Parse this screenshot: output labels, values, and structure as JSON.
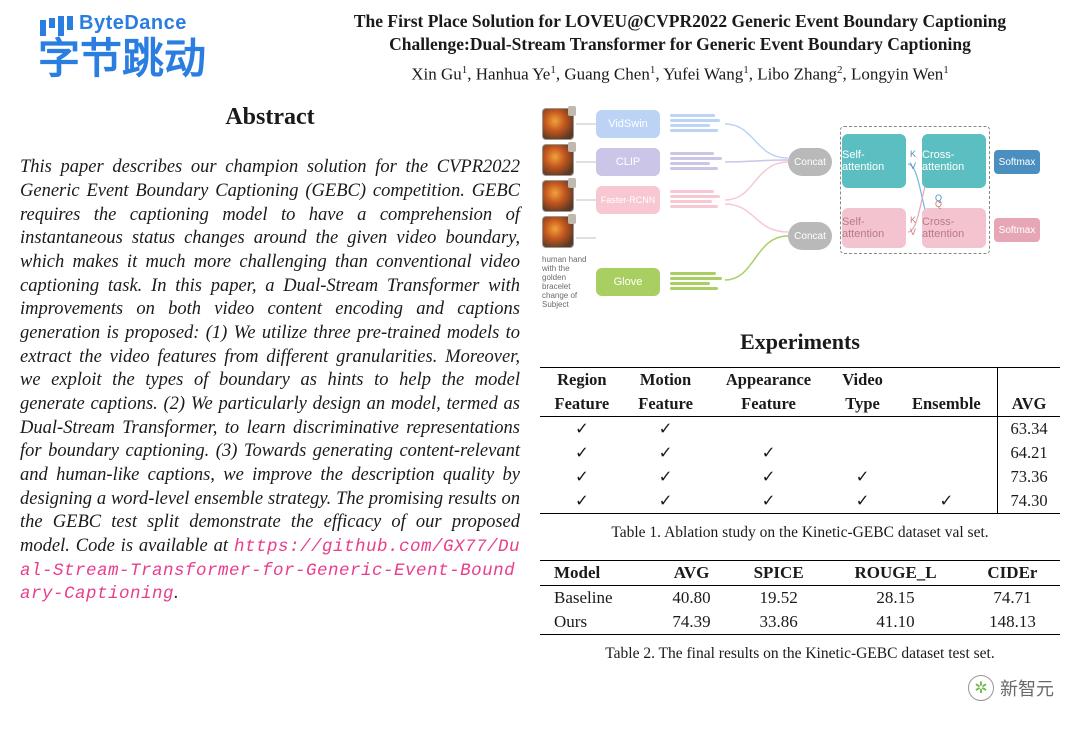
{
  "logo": {
    "en": "ByteDance",
    "cn": "字节跳动",
    "color": "#2a7de1"
  },
  "title_line1": "The First Place Solution for LOVEU@CVPR2022  Generic Event Boundary Captioning",
  "title_line2": "Challenge:Dual-Stream Transformer for Generic Event Boundary Captioning",
  "authors": [
    {
      "name": "Xin Gu",
      "aff": "1"
    },
    {
      "name": "Hanhua Ye",
      "aff": "1"
    },
    {
      "name": "Guang Chen",
      "aff": "1"
    },
    {
      "name": "Yufei Wang",
      "aff": "1"
    },
    {
      "name": "Libo Zhang",
      "aff": "2"
    },
    {
      "name": "Longyin Wen",
      "aff": "1"
    }
  ],
  "abstract_heading": "Abstract",
  "abstract_text": "This paper describes our champion solution for the CVPR2022 Generic Event Boundary Captioning (GEBC) competition. GEBC requires the captioning model to have a comprehension of instantaneous status changes around the given video boundary, which makes it much more challenging than conventional video captioning task. In this paper, a Dual-Stream Transformer with improvements on both video content encoding and captions generation is proposed: (1) We utilize three pre-trained models to extract the video features from different granularities. Moreover, we exploit the types of boundary as hints to help the model generate captions. (2) We particularly design an model, termed as Dual-Stream Transformer, to learn discriminative representations for boundary captioning. (3) Towards generating content-relevant and human-like captions, we improve the description quality by designing a word-level ensemble strategy. The promising results on the GEBC test split demonstrate the efficacy of our proposed model.  Code is available at ",
  "code_url": "https://github.com/GX77/Dual-Stream-Transformer-for-Generic-Event-Boundary-Captioning",
  "period": ".",
  "experiments_heading": "Experiments",
  "diagram": {
    "blocks": {
      "vidswin": {
        "label": "VidSwin",
        "color": "#bcd3f5"
      },
      "clip": {
        "label": "CLIP",
        "color": "#cbc5e8"
      },
      "rcnn": {
        "label": "Faster-RCNN",
        "color": "#f7c8d2"
      },
      "glove": {
        "label": "Glove",
        "color": "#a9cf63"
      },
      "concat": {
        "label": "Concat",
        "color": "#b9b9b9"
      },
      "self1": {
        "label": "Self-attention",
        "color": "#5bbfc1"
      },
      "cross1": {
        "label": "Cross-attention",
        "color": "#5bbfc1"
      },
      "self2": {
        "label": "Self-attention",
        "color": "#f3c4cf"
      },
      "cross2": {
        "label": "Cross-attention",
        "color": "#f3c4cf"
      },
      "soft1": {
        "label": "Softmax",
        "color": "#4a8fbf"
      },
      "soft2": {
        "label": "Softmax",
        "color": "#e7a6b4"
      }
    },
    "line_colors": {
      "vidswin": "#bcd3f5",
      "clip": "#cbc5e8",
      "rcnn": "#f7c8d2",
      "glove": "#a9cf63"
    },
    "text_labels": [
      "human hand with the golden bracelet",
      "change of Subject"
    ],
    "kv_labels": {
      "K": "K",
      "V": "V",
      "Q": "Q"
    },
    "dash_color": "#888888"
  },
  "table1": {
    "headers_row1": [
      "Region",
      "Motion",
      "Appearance",
      "Video",
      "",
      ""
    ],
    "headers_row2": [
      "Feature",
      "Feature",
      "Feature",
      "Type",
      "Ensemble",
      "AVG"
    ],
    "rows": [
      {
        "c": [
          true,
          true,
          false,
          false,
          false
        ],
        "avg": "63.34"
      },
      {
        "c": [
          true,
          true,
          true,
          false,
          false
        ],
        "avg": "64.21"
      },
      {
        "c": [
          true,
          true,
          true,
          true,
          false
        ],
        "avg": "73.36"
      },
      {
        "c": [
          true,
          true,
          true,
          true,
          true
        ],
        "avg": "74.30"
      }
    ],
    "caption": "Table 1. Ablation study on the Kinetic-GEBC dataset val set."
  },
  "table2": {
    "headers": [
      "Model",
      "AVG",
      "SPICE",
      "ROUGE_L",
      "CIDEr"
    ],
    "rows": [
      [
        "Baseline",
        "40.80",
        "19.52",
        "28.15",
        "74.71"
      ],
      [
        "Ours",
        "74.39",
        "33.86",
        "41.10",
        "148.13"
      ]
    ],
    "caption": "Table 2. The final results on the Kinetic-GEBC dataset test set."
  },
  "watermark": {
    "icon": "✲",
    "text": "新智元"
  }
}
